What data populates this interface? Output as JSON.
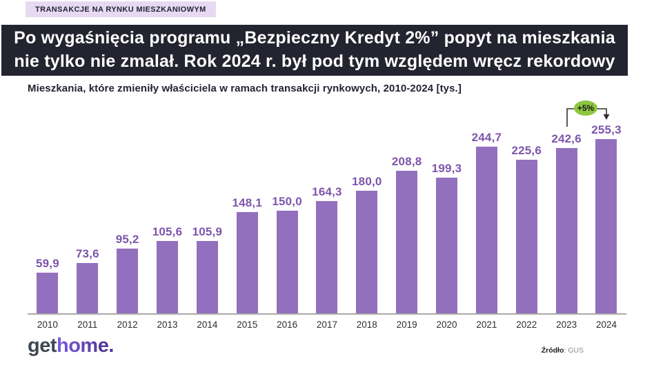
{
  "tag": {
    "label": "TRANSAKCJE NA RYNKU MIESZKANIOWYM"
  },
  "headline": {
    "line1": "Po wygaśnięcia programu „Bezpieczny Kredyt 2%” popyt na mieszkania",
    "line2": "nie tylko nie zmalał. Rok 2024 r. był pod tym względem wręcz rekordowy"
  },
  "chart_title": "Mieszkania, które zmieniły właściciela w ramach transakcji rynkowych, 2010-2024 [tys.]",
  "chart_data": {
    "type": "bar",
    "title": "Mieszkania, które zmieniły właściciela w ramach transakcji rynkowych, 2010-2024 [tys.]",
    "categories": [
      "2010",
      "2011",
      "2012",
      "2013",
      "2014",
      "2015",
      "2016",
      "2017",
      "2018",
      "2019",
      "2020",
      "2021",
      "2022",
      "2023",
      "2024"
    ],
    "values": [
      59.9,
      73.6,
      95.2,
      105.6,
      105.9,
      148.1,
      150.0,
      164.3,
      180.0,
      208.8,
      199.3,
      244.7,
      225.6,
      242.6,
      255.3
    ],
    "value_labels": [
      "59,9",
      "73,6",
      "95,2",
      "105,6",
      "105,9",
      "148,1",
      "150,0",
      "164,3",
      "180,0",
      "208,8",
      "199,3",
      "244,7",
      "225,6",
      "242,6",
      "255,3"
    ],
    "unit": "tys.",
    "xlabel": "",
    "ylabel": "",
    "ylim": [
      0,
      270
    ],
    "grid": false,
    "legend": false,
    "bar_color": "#9370be",
    "value_label_color": "#7d55ab",
    "annotation": {
      "label": "+5%",
      "badge_color": "#8dc63f",
      "from_category": "2023",
      "to_category": "2024"
    }
  },
  "footer": {
    "logo_part1": "get",
    "logo_part2": "home.",
    "source_label": "Źródło",
    "source_value": ": GUS"
  },
  "colors": {
    "banner_bg": "#232430",
    "banner_text": "#ffffff",
    "tag_bg": "#e8d9f2",
    "bar": "#9370be",
    "annotation_green": "#8dc63f",
    "axis": "#a9a9a9"
  }
}
